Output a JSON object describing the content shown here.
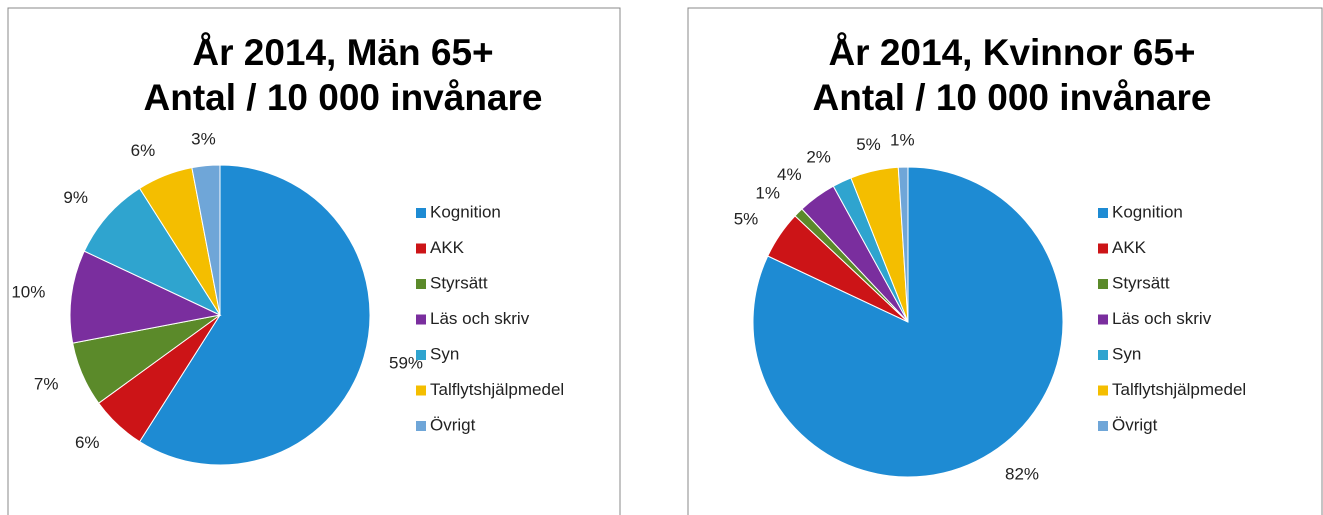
{
  "chart_data": [
    {
      "type": "pie",
      "title": "År 2014, Män 65+",
      "subtitle": "Antal / 10 000 invånare",
      "categories": [
        "Kognition",
        "AKK",
        "Styrsätt",
        "Läs och skriv",
        "Syn",
        "Talflytshjälpmedel",
        "Övrigt"
      ],
      "values": [
        59,
        6,
        7,
        10,
        9,
        6,
        3
      ],
      "value_labels": [
        "59%",
        "6%",
        "7%",
        "10%",
        "9%",
        "6%",
        "3%"
      ],
      "colors": [
        "#1e8bd3",
        "#cc1417",
        "#5b8a2a",
        "#7a2e9e",
        "#2fa4cf",
        "#f4be00",
        "#6fa6d8"
      ],
      "legend": "right"
    },
    {
      "type": "pie",
      "title": "År 2014, Kvinnor 65+",
      "subtitle": "Antal / 10 000 invånare",
      "categories": [
        "Kognition",
        "AKK",
        "Styrsätt",
        "Läs och skriv",
        "Syn",
        "Talflytshjälpmedel",
        "Övrigt"
      ],
      "values": [
        82,
        5,
        1,
        4,
        2,
        5,
        1
      ],
      "value_labels": [
        "82%",
        "5%",
        "1%",
        "4%",
        "2%",
        "5%",
        "1%"
      ],
      "colors": [
        "#1e8bd3",
        "#cc1417",
        "#5b8a2a",
        "#7a2e9e",
        "#2fa4cf",
        "#f4be00",
        "#6fa6d8"
      ],
      "legend": "right"
    }
  ]
}
